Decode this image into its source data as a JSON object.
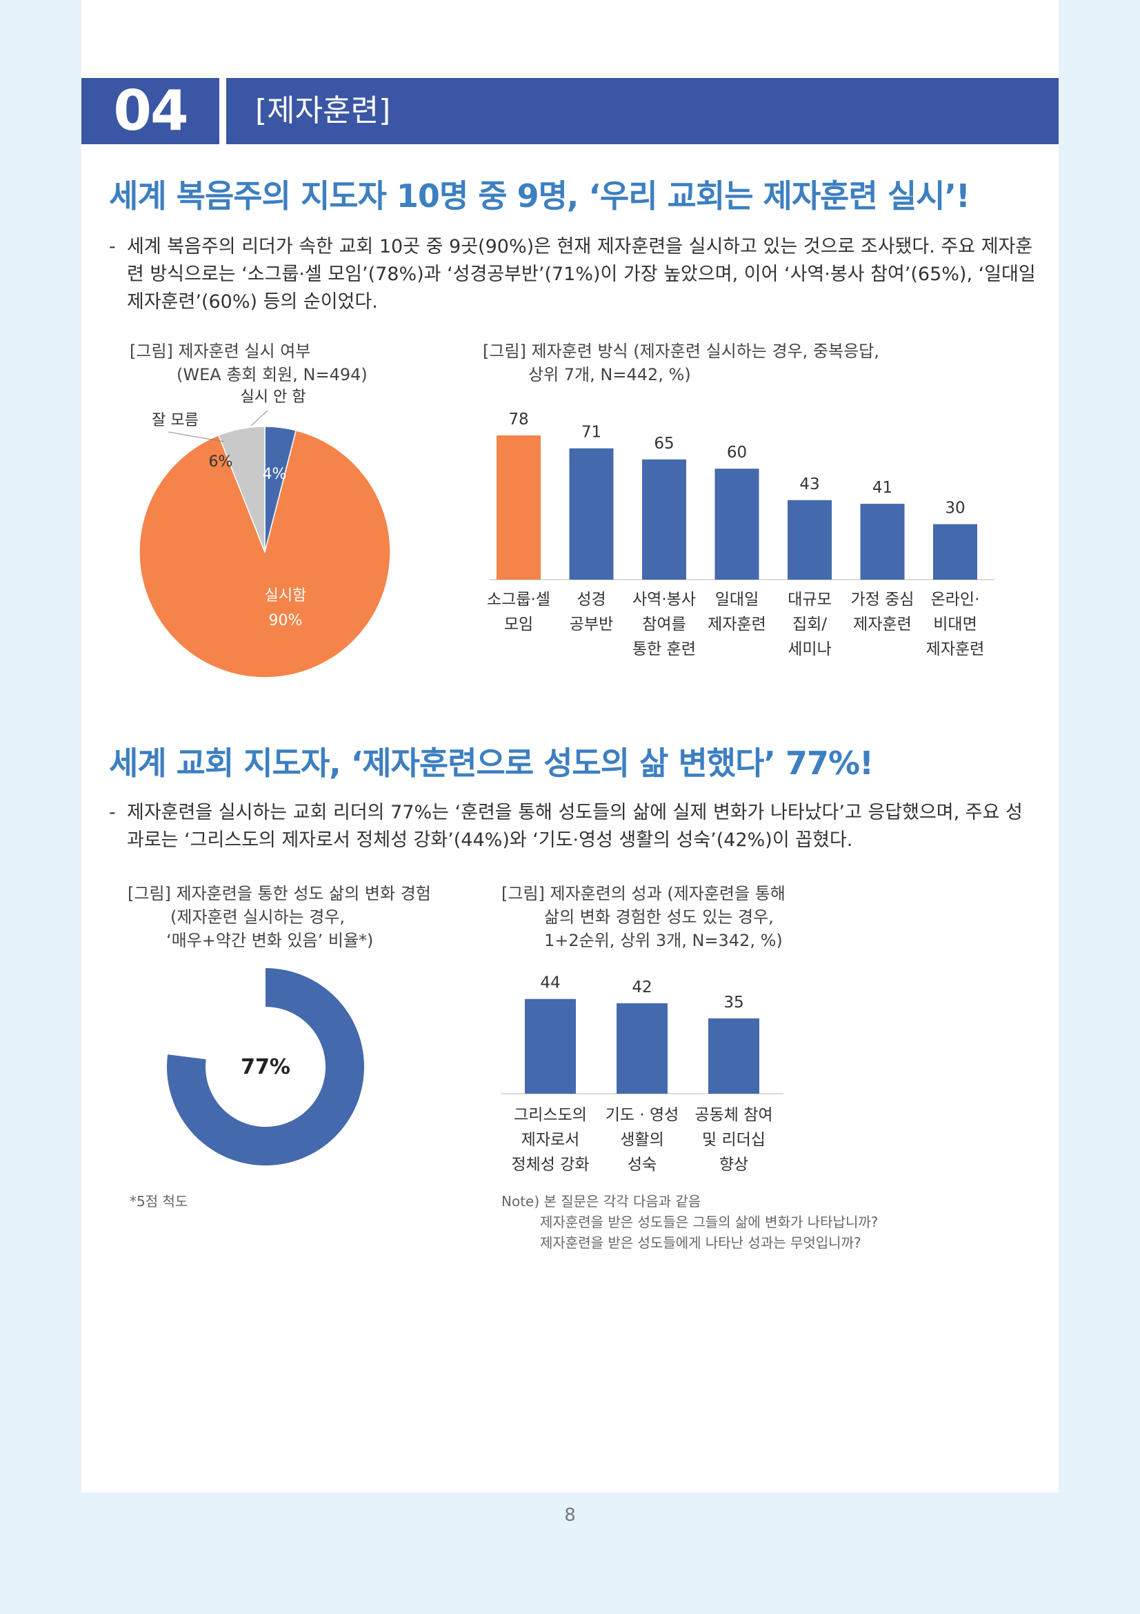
{
  "section": {
    "number": "04",
    "title": "[제자훈련]"
  },
  "block1": {
    "headline": "세계 복음주의 지도자 10명 중 9명, ‘우리 교회는 제자훈련 실시’!",
    "dash": "-",
    "paragraph": "세계 복음주의 리더가 속한 교회 10곳 중 9곳(90%)은 현재 제자훈련을 실시하고 있는 것으로 조사됐다. 주요 제자훈련 방식으로는 ‘소그룹·셀 모임’(78%)과 ‘성경공부반’(71%)이 가장 높았으며, 이어 ‘사역·봉사 참여’(65%), ‘일대일 제자훈련’(60%) 등의 순이었다."
  },
  "block2": {
    "headline": "세계 교회 지도자, ‘제자훈련으로 성도의 삶 변했다’ 77%!",
    "dash": "-",
    "paragraph": "제자훈련을 실시하는 교회 리더의 77%는 ‘훈련을 통해 성도들의 삶에 실제 변화가 나타났다’고 응답했으며, 주요 성과로는 ‘그리스도의 제자로서 정체성 강화’(44%)와 ‘기도·영성 생활의 성숙’(42%)이 꼽혔다."
  },
  "colors": {
    "orange": "#f4844a",
    "blue": "#4569ad",
    "gray": "#c9c9c9",
    "header": "#3b56a4",
    "headline": "#3d7fc1"
  },
  "chart_data": [
    {
      "type": "pie",
      "caption": [
        "[그림] 제자훈련 실시 여부",
        "(WEA 총회 회원, N=494)"
      ],
      "slices": [
        {
          "name": "실시 안 함",
          "value": 4,
          "label": "4%",
          "color": "#4569ad"
        },
        {
          "name": "실시함",
          "value": 90,
          "label": "90%",
          "color": "#f4844a"
        },
        {
          "name": "잘 모름",
          "value": 6,
          "label": "6%",
          "color": "#c9c9c9"
        }
      ]
    },
    {
      "type": "bar",
      "caption": [
        "[그림] 제자훈련 방식 (제자훈련 실시하는 경우, 중복응답,",
        "상위 7개, N=442, %)"
      ],
      "categories": [
        [
          "소그룹·셀",
          "모임"
        ],
        [
          "성경",
          "공부반"
        ],
        [
          "사역·봉사",
          "참여를",
          "통한 훈련"
        ],
        [
          "일대일",
          "제자훈련"
        ],
        [
          "대규모",
          "집회/",
          "세미나"
        ],
        [
          "가정 중심",
          "제자훈련"
        ],
        [
          "온라인·",
          "비대면",
          "제자훈련"
        ]
      ],
      "values": [
        78,
        71,
        65,
        60,
        43,
        41,
        30
      ],
      "highlight_index": 0,
      "ylim": [
        0,
        100
      ]
    },
    {
      "type": "donut",
      "caption": [
        "[그림] 제자훈련을 통한 성도 삶의 변화 경험",
        "(제자훈련 실시하는 경우,",
        "‘매우+약간 변화 있음’ 비율*)"
      ],
      "value": 77,
      "label": "77%",
      "color": "#4569ad",
      "footnote": "*5점 척도"
    },
    {
      "type": "bar",
      "caption": [
        "[그림] 제자훈련의 성과 (제자훈련을 통해",
        "삶의 변화 경험한 성도 있는 경우,",
        "1+2순위, 상위 3개, N=342, %)"
      ],
      "categories": [
        [
          "그리스도의",
          "제자로서",
          "정체성 강화"
        ],
        [
          "기도 · 영성",
          "생활의",
          "성숙"
        ],
        [
          "공동체 참여",
          "및 리더십",
          "향상"
        ]
      ],
      "values": [
        44,
        42,
        35
      ],
      "ylim": [
        0,
        100
      ],
      "note": [
        "Note) 본 질문은 각각 다음과 같음",
        "제자훈련을 받은 성도들은 그들의 삶에 변화가 나타납니까?",
        "제자훈련을 받은 성도들에게 나타난 성과는 무엇입니까?"
      ]
    }
  ],
  "page_number": "8"
}
